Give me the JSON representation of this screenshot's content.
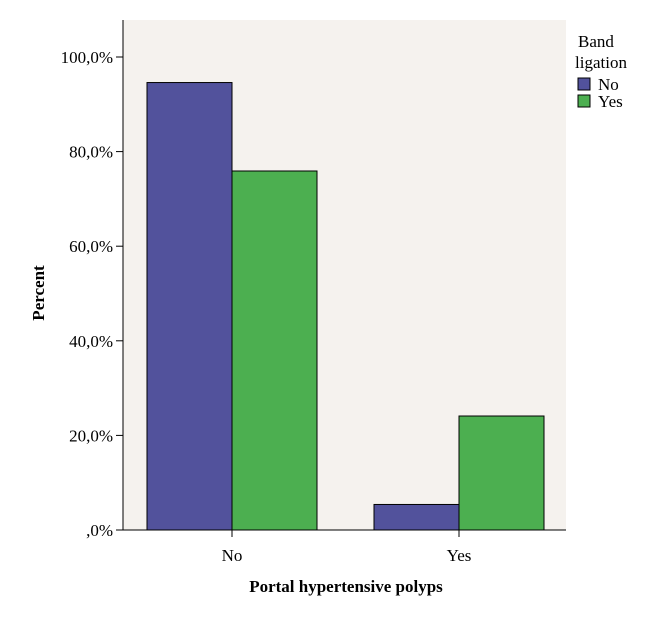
{
  "chart_data": {
    "type": "bar",
    "categories": [
      "No",
      "Yes"
    ],
    "series": [
      {
        "name": "No",
        "values": [
          94.6,
          5.4
        ],
        "color": "#52529c"
      },
      {
        "name": "Yes",
        "values": [
          75.9,
          24.1
        ],
        "color": "#4caf50"
      }
    ],
    "xlabel": "Portal hypertensive polyps",
    "ylabel": "Percent",
    "ylim": [
      0,
      100
    ],
    "yticks": [
      0,
      20,
      40,
      60,
      80,
      100
    ],
    "ytick_labels": [
      ",0%",
      "20,0%",
      "40,0%",
      "60,0%",
      "80,0%",
      "100,0%"
    ],
    "legend": {
      "title_lines": [
        "Band",
        "ligation"
      ],
      "position": "top-right"
    },
    "plot_background": "#f5f2ee",
    "grid": false
  }
}
